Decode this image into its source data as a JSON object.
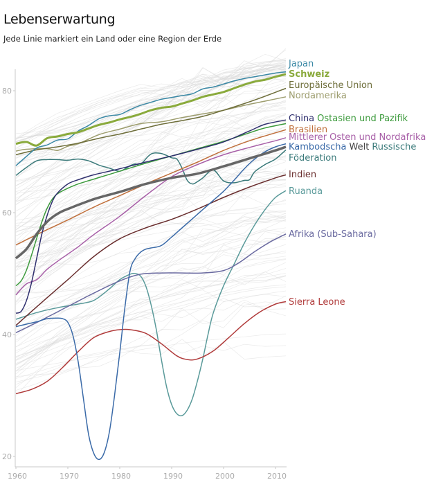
{
  "header": {
    "title": "Lebenserwartung",
    "subtitle": "Jede Linie markiert ein Land oder eine Region der Erde"
  },
  "chart_data": {
    "type": "line",
    "title": "Lebenserwartung",
    "subtitle": "Jede Linie markiert ein Land oder eine Region der Erde",
    "xlabel": "",
    "ylabel": "",
    "xlim": [
      1960,
      2012
    ],
    "ylim": [
      18,
      85
    ],
    "xticks": [
      1960,
      1970,
      1980,
      1990,
      2000,
      2010
    ],
    "yticks": [
      20,
      40,
      60,
      80
    ],
    "grid": false,
    "legend": "direct labels at right end of lines",
    "background_series_note": "many thin light-gray lines for all other countries",
    "series": [
      {
        "name": "Japan",
        "color": "#3a88a5",
        "width": 1.5,
        "x": [
          1960,
          1962,
          1964,
          1966,
          1968,
          1970,
          1972,
          1974,
          1976,
          1978,
          1980,
          1982,
          1984,
          1986,
          1988,
          1990,
          1992,
          1994,
          1996,
          1998,
          2000,
          2002,
          2004,
          2006,
          2008,
          2010,
          2012
        ],
        "y": [
          67.7,
          69.2,
          70.6,
          71.1,
          71.9,
          72.1,
          73.4,
          74.3,
          75.4,
          75.9,
          76.1,
          76.9,
          77.6,
          78.1,
          78.6,
          78.9,
          79.2,
          79.5,
          80.3,
          80.6,
          81.1,
          81.6,
          82.0,
          82.3,
          82.6,
          82.9,
          83.1
        ]
      },
      {
        "name": "Schweiz",
        "color": "#8aaa3c",
        "width": 3,
        "bold_label": true,
        "x": [
          1960,
          1962,
          1964,
          1966,
          1968,
          1970,
          1972,
          1974,
          1976,
          1978,
          1980,
          1982,
          1984,
          1986,
          1988,
          1990,
          1992,
          1994,
          1996,
          1998,
          2000,
          2002,
          2004,
          2006,
          2008,
          2010,
          2012
        ],
        "y": [
          71.3,
          71.6,
          71.0,
          72.2,
          72.5,
          72.9,
          73.2,
          73.8,
          74.4,
          74.8,
          75.3,
          75.7,
          76.2,
          76.8,
          77.2,
          77.4,
          77.9,
          78.4,
          79.0,
          79.4,
          79.8,
          80.4,
          81.0,
          81.5,
          81.8,
          82.3,
          82.7
        ]
      },
      {
        "name": "Europäische Union",
        "color": "#6e6e3a",
        "width": 1.5,
        "x": [
          1960,
          1964,
          1968,
          1972,
          1976,
          1980,
          1984,
          1988,
          1992,
          1996,
          2000,
          2004,
          2008,
          2012
        ],
        "y": [
          69.5,
          70.3,
          70.8,
          71.4,
          72.2,
          72.9,
          73.7,
          74.5,
          75.1,
          75.8,
          76.8,
          77.9,
          79.1,
          80.4
        ]
      },
      {
        "name": "Nordamerika",
        "color": "#9d9d6e",
        "width": 1.5,
        "x": [
          1960,
          1962,
          1966,
          1968,
          1970,
          1972,
          1976,
          1980,
          1984,
          1988,
          1992,
          1996,
          2000,
          2004,
          2008,
          2012
        ],
        "y": [
          70.1,
          70.4,
          70.5,
          70.2,
          70.9,
          71.3,
          72.8,
          73.7,
          74.6,
          74.9,
          75.6,
          76.2,
          76.8,
          77.6,
          78.3,
          79.0
        ]
      },
      {
        "name": "China",
        "color": "#2f2f6e",
        "width": 1.5,
        "x": [
          1960,
          1961,
          1962,
          1963,
          1964,
          1965,
          1966,
          1967,
          1968,
          1970,
          1972,
          1975,
          1980,
          1985,
          1990,
          1995,
          2000,
          2005,
          2008,
          2012
        ],
        "y": [
          43.5,
          43.8,
          45.5,
          48.5,
          52.5,
          56.5,
          59.5,
          61.8,
          63.2,
          64.7,
          65.4,
          66.2,
          67.2,
          68.3,
          69.3,
          70.4,
          71.6,
          73.4,
          74.5,
          75.2
        ]
      },
      {
        "name": "Ostasien und Pazifik",
        "color": "#3c9a3c",
        "width": 1.5,
        "x": [
          1960,
          1961,
          1962,
          1963,
          1964,
          1965,
          1966,
          1967,
          1968,
          1970,
          1972,
          1975,
          1980,
          1985,
          1990,
          1995,
          2000,
          2005,
          2008,
          2012
        ],
        "y": [
          48.0,
          48.8,
          50.5,
          53.0,
          55.8,
          58.5,
          60.7,
          62.2,
          63.1,
          64.0,
          64.7,
          65.5,
          66.8,
          68.1,
          69.3,
          70.5,
          71.7,
          73.1,
          73.9,
          74.6
        ]
      },
      {
        "name": "Brasilien",
        "color": "#c0703c",
        "width": 1.5,
        "x": [
          1960,
          1965,
          1970,
          1975,
          1980,
          1985,
          1990,
          1995,
          2000,
          2005,
          2010,
          2012
        ],
        "y": [
          54.7,
          56.8,
          58.8,
          60.9,
          62.8,
          64.7,
          66.5,
          68.3,
          70.2,
          71.8,
          73.1,
          73.6
        ]
      },
      {
        "name": "Mittlerer Osten und Nordafrika",
        "color": "#a860a8",
        "width": 1.5,
        "x": [
          1960,
          1962,
          1964,
          1966,
          1968,
          1970,
          1972,
          1975,
          1980,
          1985,
          1990,
          1995,
          2000,
          2005,
          2010,
          2012
        ],
        "y": [
          46.5,
          48.3,
          49.0,
          50.7,
          52.0,
          53.2,
          54.4,
          56.4,
          59.4,
          62.8,
          65.9,
          67.9,
          69.5,
          70.7,
          71.8,
          72.3
        ]
      },
      {
        "name": "Kambodscha",
        "color": "#3a6aa8",
        "width": 1.5,
        "x": [
          1960,
          1964,
          1966,
          1968,
          1969,
          1970,
          1971,
          1972,
          1973,
          1974,
          1975,
          1976,
          1977,
          1978,
          1979,
          1980,
          1981,
          1982,
          1983,
          1984,
          1985,
          1986,
          1988,
          1990,
          1992,
          1994,
          1996,
          1998,
          2000,
          2002,
          2004,
          2006,
          2008,
          2010,
          2012
        ],
        "y": [
          41.3,
          42.1,
          42.6,
          42.7,
          42.6,
          42.0,
          39.8,
          35.5,
          29.5,
          23.6,
          20.5,
          19.5,
          20.6,
          24.0,
          30.0,
          37.0,
          44.5,
          50.5,
          52.5,
          53.5,
          54.0,
          54.2,
          54.6,
          56.0,
          57.5,
          59.0,
          60.5,
          62.0,
          63.5,
          65.3,
          67.2,
          68.8,
          70.0,
          70.8,
          71.3
        ]
      },
      {
        "name": "Welt",
        "color": "#666666",
        "width": 3.5,
        "x": [
          1960,
          1962,
          1964,
          1966,
          1968,
          1970,
          1975,
          1980,
          1985,
          1990,
          1995,
          2000,
          2005,
          2010,
          2012
        ],
        "y": [
          52.5,
          54.0,
          56.5,
          58.5,
          59.8,
          60.6,
          62.2,
          63.4,
          64.7,
          65.7,
          66.4,
          67.6,
          68.9,
          70.2,
          70.8
        ]
      },
      {
        "name": "Russische Föderation",
        "color": "#3a7a7a",
        "width": 1.5,
        "x": [
          1960,
          1962,
          1964,
          1966,
          1968,
          1970,
          1972,
          1974,
          1976,
          1978,
          1980,
          1982,
          1983,
          1984,
          1986,
          1988,
          1990,
          1991,
          1992,
          1993,
          1994,
          1995,
          1996,
          1998,
          2000,
          2002,
          2004,
          2005,
          2006,
          2008,
          2010,
          2012
        ],
        "y": [
          66.1,
          67.4,
          68.5,
          68.7,
          68.7,
          68.6,
          68.8,
          68.5,
          67.8,
          67.3,
          66.8,
          67.7,
          68.0,
          67.9,
          69.6,
          69.7,
          69.0,
          68.8,
          67.3,
          65.3,
          64.7,
          65.1,
          65.7,
          67.0,
          65.2,
          64.9,
          65.3,
          65.4,
          66.7,
          67.9,
          68.8,
          70.3
        ]
      },
      {
        "name": "Indien",
        "color": "#6a2f2f",
        "width": 1.5,
        "x": [
          1960,
          1965,
          1970,
          1975,
          1980,
          1985,
          1990,
          1995,
          2000,
          2005,
          2010,
          2012
        ],
        "y": [
          41.5,
          45.3,
          49.0,
          52.8,
          55.7,
          57.5,
          58.9,
          60.6,
          62.5,
          64.2,
          65.7,
          66.2
        ]
      },
      {
        "name": "Ruanda",
        "color": "#5a9a9a",
        "width": 1.5,
        "x": [
          1960,
          1964,
          1968,
          1972,
          1975,
          1978,
          1980,
          1982,
          1983,
          1984,
          1985,
          1986,
          1987,
          1988,
          1989,
          1990,
          1991,
          1992,
          1993,
          1994,
          1995,
          1996,
          1997,
          1998,
          2000,
          2002,
          2004,
          2006,
          2008,
          2010,
          2012
        ],
        "y": [
          42.5,
          43.6,
          44.4,
          45.0,
          45.6,
          47.5,
          49.0,
          49.9,
          50.0,
          49.6,
          48.0,
          45.0,
          41.0,
          36.0,
          31.5,
          28.5,
          27.0,
          26.7,
          27.6,
          29.5,
          32.5,
          36.0,
          40.0,
          43.5,
          48.0,
          51.5,
          55.0,
          58.0,
          60.5,
          62.5,
          63.6
        ]
      },
      {
        "name": "Afrika (Sub-Sahara)",
        "color": "#6a6aa0",
        "width": 1.5,
        "x": [
          1960,
          1965,
          1970,
          1975,
          1980,
          1984,
          1988,
          1992,
          1996,
          2000,
          2003,
          2006,
          2009,
          2012
        ],
        "y": [
          40.3,
          42.4,
          44.6,
          46.8,
          48.8,
          49.9,
          50.1,
          50.1,
          50.1,
          50.5,
          51.8,
          53.6,
          55.2,
          56.5
        ]
      },
      {
        "name": "Sierra Leone",
        "color": "#b03a3a",
        "width": 1.5,
        "x": [
          1960,
          1963,
          1966,
          1969,
          1972,
          1975,
          1978,
          1980,
          1982,
          1985,
          1988,
          1991,
          1993,
          1995,
          1998,
          2001,
          2004,
          2007,
          2010,
          2012
        ],
        "y": [
          30.3,
          31.0,
          32.3,
          34.6,
          37.2,
          39.5,
          40.5,
          40.8,
          40.8,
          40.2,
          38.5,
          36.5,
          35.9,
          36.0,
          37.3,
          39.5,
          41.8,
          43.7,
          45.0,
          45.4
        ]
      }
    ],
    "labels": [
      {
        "text": "Japan",
        "series": "Japan",
        "color": "#3a88a5",
        "row": 0
      },
      {
        "text": "Schweiz",
        "series": "Schweiz",
        "color": "#8aaa3c",
        "row": 1,
        "bold": true
      },
      {
        "text": "Europäische Union",
        "series": "Europäische Union",
        "color": "#6e6e3a",
        "row": 2
      },
      {
        "text": "Nordamerika",
        "series": "Nordamerika",
        "color": "#9d9d6e",
        "row": 3
      },
      {
        "text": "China",
        "series": "China",
        "color": "#2f2f6e",
        "row": 4
      },
      {
        "text": "Ostasien und Pazifik",
        "series": "Ostasien und Pazifik",
        "color": "#3c9a3c",
        "row": 4
      },
      {
        "text": "Brasilien",
        "series": "Brasilien",
        "color": "#c0703c",
        "row": 5
      },
      {
        "text": "Mittlerer Osten und Nordafrika",
        "series": "Mittlerer Osten und Nordafrika",
        "color": "#a860a8",
        "row": 6
      },
      {
        "text": "Kambodscha",
        "series": "Kambodscha",
        "color": "#3a6aa8",
        "row": 7
      },
      {
        "text": "Welt",
        "series": "Welt",
        "color": "#444444",
        "row": 7
      },
      {
        "text": "Russische",
        "series": "Russische Föderation",
        "color": "#3a7a7a",
        "row": 7
      },
      {
        "text": "Föderation",
        "series": "Russische Föderation",
        "color": "#3a7a7a",
        "row": 8
      },
      {
        "text": "Indien",
        "series": "Indien",
        "color": "#6a2f2f",
        "row": 9
      },
      {
        "text": "Ruanda",
        "series": "Ruanda",
        "color": "#5a9a9a",
        "row": 10
      },
      {
        "text": "Afrika (Sub-Sahara)",
        "series": "Afrika (Sub-Sahara)",
        "color": "#6a6aa0",
        "row": 11
      },
      {
        "text": "Sierra Leone",
        "series": "Sierra Leone",
        "color": "#b03a3a",
        "row": 12
      }
    ]
  }
}
